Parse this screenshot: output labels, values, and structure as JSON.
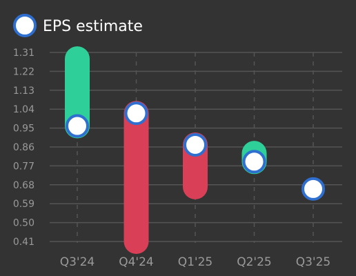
{
  "legend": {
    "label": "EPS estimate"
  },
  "colors": {
    "background": "#333333",
    "beat": "#2ecf98",
    "miss": "#d93f57",
    "marker_fill": "#ffffff",
    "marker_stroke": "#2f6fd0",
    "grid": "#555555",
    "text": "#9a9a9a"
  },
  "chart_data": {
    "type": "floating-bar",
    "categories": [
      "Q3'24",
      "Q4'24",
      "Q1'25",
      "Q2'25",
      "Q3'25"
    ],
    "y_ticks": [
      "1.31",
      "1.22",
      "1.13",
      "1.04",
      "0.95",
      "0.86",
      "0.77",
      "0.68",
      "0.59",
      "0.50",
      "0.41"
    ],
    "ylim": [
      0.41,
      1.31
    ],
    "grid": true,
    "legend_position": "top-left",
    "series": [
      {
        "name": "EPS estimate",
        "values": [
          0.96,
          1.02,
          0.87,
          0.79,
          0.66
        ]
      }
    ],
    "actuals": [
      1.28,
      0.41,
      0.67,
      0.83,
      null
    ]
  }
}
